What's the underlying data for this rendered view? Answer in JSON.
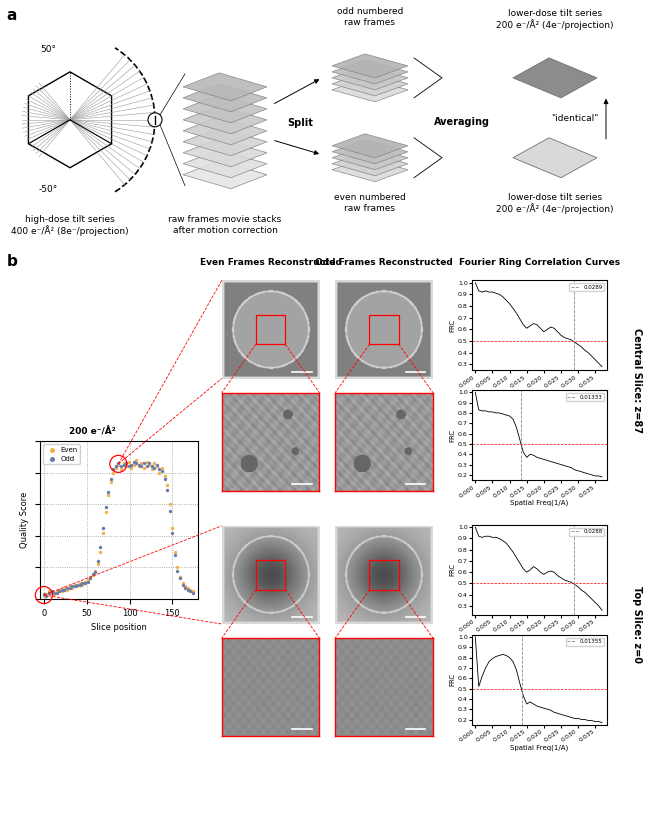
{
  "panel_labels": [
    "a",
    "b"
  ],
  "diagram": {
    "tilt_range": [
      -50,
      50
    ],
    "tilt_labels": [
      "50°",
      "-50°"
    ],
    "high_dose": [
      "high-dose tilt series",
      "400 e⁻/Å² (8e⁻/projection)"
    ],
    "raw_frames": [
      "raw frames movie stacks",
      "after motion correction"
    ],
    "split": "Split",
    "averaging": "Averaging",
    "odd_frames": [
      "odd numbered",
      "raw frames"
    ],
    "even_frames": [
      "even numbered",
      "raw frames"
    ],
    "lower_dose_top": [
      "lower-dose tilt series",
      "200 e⁻/Å² (4e⁻/projection)"
    ],
    "lower_dose_bottom": [
      "lower-dose tilt series",
      "200 e⁻/Å² (4e⁻/projection)"
    ],
    "identical": "\"identical\""
  },
  "column_headers": [
    "Even Frames Reconstructed",
    "Odd Frames Reconstructed",
    "Fourier Ring Correlation Curves"
  ],
  "slices": [
    {
      "label": "Central Slice: z=87",
      "z": 87
    },
    {
      "label": "Top Slice: z=0",
      "z": 0
    }
  ],
  "chart_data": [
    {
      "type": "scatter",
      "title": "200 e⁻/Å²",
      "xlabel": "Slice position",
      "ylabel": "Quality Score",
      "x": [
        0,
        3,
        6,
        9,
        12,
        15,
        18,
        21,
        24,
        27,
        30,
        33,
        36,
        39,
        42,
        45,
        48,
        51,
        54,
        57,
        60,
        63,
        66,
        69,
        72,
        75,
        78,
        81,
        84,
        87,
        90,
        93,
        96,
        99,
        102,
        105,
        108,
        111,
        114,
        117,
        120,
        123,
        126,
        129,
        132,
        135,
        138,
        141,
        144,
        147,
        150,
        153,
        156,
        159,
        162,
        165,
        168,
        171,
        174
      ],
      "series": [
        {
          "name": "Even",
          "color": "#f5b04c",
          "values": [
            0.02,
            0.03,
            0.05,
            0.04,
            0.03,
            0.05,
            0.06,
            0.05,
            0.07,
            0.06,
            0.08,
            0.07,
            0.09,
            0.08,
            0.1,
            0.09,
            0.11,
            0.12,
            0.14,
            0.15,
            0.18,
            0.22,
            0.3,
            0.42,
            0.55,
            0.66,
            0.74,
            0.8,
            0.83,
            0.85,
            0.82,
            0.86,
            0.84,
            0.87,
            0.83,
            0.85,
            0.88,
            0.84,
            0.86,
            0.83,
            0.87,
            0.85,
            0.82,
            0.86,
            0.84,
            0.8,
            0.83,
            0.78,
            0.72,
            0.6,
            0.45,
            0.3,
            0.2,
            0.14,
            0.1,
            0.08,
            0.07,
            0.06,
            0.05
          ]
        },
        {
          "name": "Odd",
          "color": "#6b7ba8",
          "values": [
            0.03,
            0.02,
            0.04,
            0.05,
            0.04,
            0.04,
            0.05,
            0.06,
            0.06,
            0.07,
            0.07,
            0.08,
            0.08,
            0.09,
            0.09,
            0.1,
            0.1,
            0.11,
            0.13,
            0.16,
            0.17,
            0.24,
            0.33,
            0.45,
            0.58,
            0.68,
            0.76,
            0.82,
            0.84,
            0.86,
            0.84,
            0.85,
            0.86,
            0.84,
            0.85,
            0.87,
            0.86,
            0.85,
            0.84,
            0.86,
            0.84,
            0.86,
            0.84,
            0.83,
            0.85,
            0.82,
            0.81,
            0.76,
            0.69,
            0.56,
            0.42,
            0.28,
            0.18,
            0.13,
            0.09,
            0.07,
            0.06,
            0.05,
            0.04
          ]
        }
      ],
      "xlim": [
        -5,
        180
      ],
      "xticks": [
        0,
        50,
        100,
        150
      ],
      "ylim": [
        0,
        1
      ],
      "yticks": [
        0,
        0.2,
        0.4,
        0.6,
        0.8,
        1
      ],
      "grid": true,
      "legend": "upper left",
      "tick_labels": "x",
      "marker": "o"
    },
    {
      "type": "line",
      "ylabel": "FRC",
      "color": "#000000",
      "legend": "upper right",
      "x": [
        0,
        0.001,
        0.002,
        0.003,
        0.004,
        0.005,
        0.006,
        0.007,
        0.008,
        0.009,
        0.01,
        0.011,
        0.012,
        0.013,
        0.014,
        0.015,
        0.016,
        0.017,
        0.018,
        0.019,
        0.02,
        0.021,
        0.022,
        0.023,
        0.024,
        0.025,
        0.026,
        0.027,
        0.028,
        0.029,
        0.03,
        0.031,
        0.032,
        0.033,
        0.034,
        0.035,
        0.036,
        0.037
      ],
      "values": [
        1.0,
        0.93,
        0.92,
        0.93,
        0.92,
        0.92,
        0.91,
        0.9,
        0.88,
        0.85,
        0.82,
        0.78,
        0.74,
        0.69,
        0.64,
        0.61,
        0.63,
        0.65,
        0.64,
        0.61,
        0.58,
        0.6,
        0.62,
        0.61,
        0.58,
        0.55,
        0.53,
        0.52,
        0.51,
        0.49,
        0.47,
        0.45,
        0.42,
        0.4,
        0.37,
        0.34,
        0.31,
        0.28
      ],
      "threshold": 0.5,
      "cutoff": {
        "name": "0.0289",
        "value": 0.0289
      },
      "xlim": [
        -0.001,
        0.0385
      ],
      "xticks": [
        {
          "value": 0,
          "label": "0.000"
        },
        {
          "value": 0.005,
          "label": "0.005"
        },
        {
          "value": 0.01,
          "label": "0.010"
        },
        {
          "value": 0.015,
          "label": "0.015"
        },
        {
          "value": 0.02,
          "label": "0.020"
        },
        {
          "value": 0.025,
          "label": "0.025"
        },
        {
          "value": 0.03,
          "label": "0.030"
        },
        {
          "value": 0.035,
          "label": "0.035"
        }
      ],
      "ylim": [
        0.25,
        1.02
      ],
      "yticks": [
        0.3,
        0.4,
        0.5,
        0.6,
        0.7,
        0.8,
        0.9,
        {
          "value": 1,
          "label": "1.0"
        }
      ]
    },
    {
      "type": "line",
      "ylabel": "FRC",
      "xlabel": "Spatial Freq(1/A)",
      "color": "#000000",
      "legend": "upper right",
      "x": [
        0,
        0.001,
        0.002,
        0.003,
        0.004,
        0.005,
        0.006,
        0.007,
        0.008,
        0.009,
        0.01,
        0.011,
        0.012,
        0.013,
        0.014,
        0.015,
        0.016,
        0.017,
        0.018,
        0.019,
        0.02,
        0.021,
        0.022,
        0.023,
        0.024,
        0.025,
        0.026,
        0.027,
        0.028,
        0.029,
        0.03,
        0.031,
        0.032,
        0.033,
        0.034,
        0.035,
        0.036,
        0.037
      ],
      "values": [
        1.0,
        0.83,
        0.82,
        0.82,
        0.81,
        0.81,
        0.8,
        0.8,
        0.79,
        0.78,
        0.77,
        0.74,
        0.66,
        0.54,
        0.42,
        0.37,
        0.4,
        0.39,
        0.37,
        0.36,
        0.35,
        0.34,
        0.33,
        0.32,
        0.31,
        0.3,
        0.29,
        0.28,
        0.27,
        0.25,
        0.24,
        0.23,
        0.22,
        0.21,
        0.2,
        0.19,
        0.19,
        0.18
      ],
      "threshold": 0.5,
      "cutoff": {
        "name": "0.01333",
        "value": 0.01333
      },
      "xlim": [
        -0.001,
        0.0385
      ],
      "xticks": [
        {
          "value": 0,
          "label": "0.000"
        },
        {
          "value": 0.005,
          "label": "0.005"
        },
        {
          "value": 0.01,
          "label": "0.010"
        },
        {
          "value": 0.015,
          "label": "0.015"
        },
        {
          "value": 0.02,
          "label": "0.020"
        },
        {
          "value": 0.025,
          "label": "0.025"
        },
        {
          "value": 0.03,
          "label": "0.030"
        },
        {
          "value": 0.035,
          "label": "0.035"
        }
      ],
      "ylim": [
        0.15,
        1.02
      ],
      "yticks": [
        0.2,
        0.3,
        0.4,
        0.5,
        0.6,
        0.7,
        0.8,
        0.9,
        {
          "value": 1,
          "label": "1.0"
        }
      ]
    },
    {
      "type": "line",
      "ylabel": "FRC",
      "color": "#000000",
      "legend": "upper right",
      "x": [
        0,
        0.001,
        0.002,
        0.003,
        0.004,
        0.005,
        0.006,
        0.007,
        0.008,
        0.009,
        0.01,
        0.011,
        0.012,
        0.013,
        0.014,
        0.015,
        0.016,
        0.017,
        0.018,
        0.019,
        0.02,
        0.021,
        0.022,
        0.023,
        0.024,
        0.025,
        0.026,
        0.027,
        0.028,
        0.029,
        0.03,
        0.031,
        0.032,
        0.033,
        0.034,
        0.035,
        0.036,
        0.037
      ],
      "values": [
        1.0,
        0.92,
        0.91,
        0.92,
        0.92,
        0.91,
        0.91,
        0.9,
        0.88,
        0.86,
        0.82,
        0.78,
        0.73,
        0.68,
        0.63,
        0.6,
        0.62,
        0.65,
        0.63,
        0.6,
        0.58,
        0.6,
        0.61,
        0.6,
        0.57,
        0.55,
        0.53,
        0.52,
        0.51,
        0.49,
        0.47,
        0.44,
        0.42,
        0.39,
        0.36,
        0.33,
        0.3,
        0.26
      ],
      "threshold": 0.5,
      "cutoff": {
        "name": "0.0288",
        "value": 0.0288
      },
      "xlim": [
        -0.001,
        0.0385
      ],
      "xticks": [
        {
          "value": 0,
          "label": "0.000"
        },
        {
          "value": 0.005,
          "label": "0.005"
        },
        {
          "value": 0.01,
          "label": "0.010"
        },
        {
          "value": 0.015,
          "label": "0.015"
        },
        {
          "value": 0.02,
          "label": "0.020"
        },
        {
          "value": 0.025,
          "label": "0.025"
        },
        {
          "value": 0.03,
          "label": "0.030"
        },
        {
          "value": 0.035,
          "label": "0.035"
        }
      ],
      "ylim": [
        0.22,
        1.02
      ],
      "yticks": [
        0.3,
        0.4,
        0.5,
        0.6,
        0.7,
        0.8,
        0.9,
        {
          "value": 1,
          "label": "1.0"
        }
      ]
    },
    {
      "type": "line",
      "ylabel": "FRC",
      "xlabel": "Spatial Freq(1/A)",
      "color": "#000000",
      "legend": "upper right",
      "x": [
        0,
        0.001,
        0.002,
        0.003,
        0.004,
        0.005,
        0.006,
        0.007,
        0.008,
        0.009,
        0.01,
        0.011,
        0.012,
        0.013,
        0.014,
        0.015,
        0.016,
        0.017,
        0.018,
        0.019,
        0.02,
        0.021,
        0.022,
        0.023,
        0.024,
        0.025,
        0.026,
        0.027,
        0.028,
        0.029,
        0.03,
        0.031,
        0.032,
        0.033,
        0.034,
        0.035,
        0.036,
        0.037
      ],
      "values": [
        1.0,
        0.52,
        0.62,
        0.7,
        0.76,
        0.79,
        0.81,
        0.82,
        0.83,
        0.82,
        0.8,
        0.76,
        0.68,
        0.55,
        0.43,
        0.35,
        0.37,
        0.35,
        0.33,
        0.32,
        0.31,
        0.3,
        0.29,
        0.27,
        0.26,
        0.25,
        0.24,
        0.23,
        0.22,
        0.21,
        0.21,
        0.2,
        0.2,
        0.19,
        0.19,
        0.18,
        0.18,
        0.17
      ],
      "threshold": 0.5,
      "cutoff": {
        "name": "0.01355",
        "value": 0.01355
      },
      "xlim": [
        -0.001,
        0.0385
      ],
      "xticks": [
        {
          "value": 0,
          "label": "0.000"
        },
        {
          "value": 0.005,
          "label": "0.005"
        },
        {
          "value": 0.01,
          "label": "0.010"
        },
        {
          "value": 0.015,
          "label": "0.015"
        },
        {
          "value": 0.02,
          "label": "0.020"
        },
        {
          "value": 0.025,
          "label": "0.025"
        },
        {
          "value": 0.03,
          "label": "0.030"
        },
        {
          "value": 0.035,
          "label": "0.035"
        }
      ],
      "ylim": [
        0.15,
        1.02
      ],
      "yticks": [
        0.2,
        0.3,
        0.4,
        0.5,
        0.6,
        0.7,
        0.8,
        0.9,
        {
          "value": 1,
          "label": "1.0"
        }
      ]
    }
  ]
}
